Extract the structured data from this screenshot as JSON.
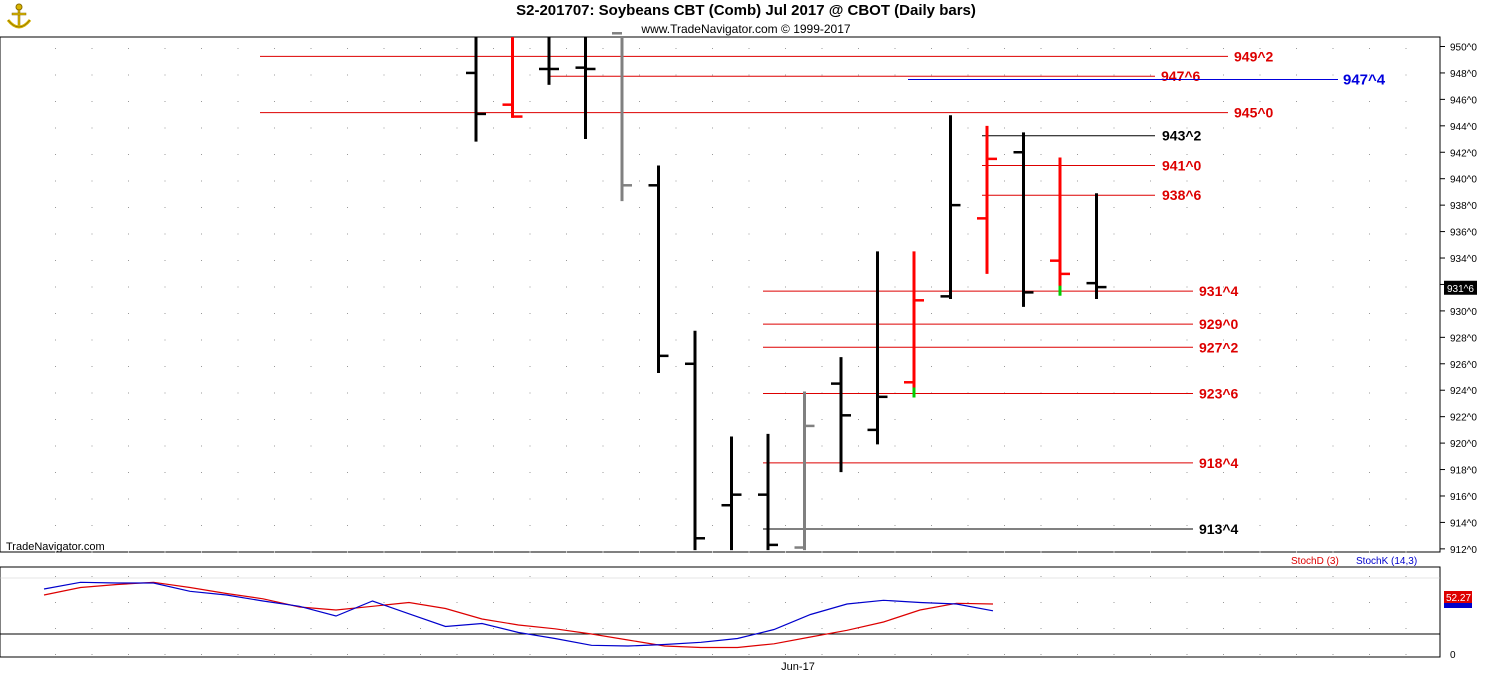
{
  "header": {
    "title": "S2-201707:  Soybeans CBT (Comb) Jul 2017 @ CBOT  (Daily bars)",
    "subtitle": "www.TradeNavigator.com © 1999-2017",
    "watermark": "TradeNavigator.com",
    "logo_icon": "anchor-logo-icon"
  },
  "colors": {
    "up_bar": "#000000",
    "down_bar": "#ff0000",
    "gray_bar": "#808080",
    "level_red": "#dd0000",
    "level_blue": "#0000dd",
    "stoch_d": "#dd0000",
    "stoch_k": "#0000cc"
  },
  "chart_data": [
    {
      "type": "ohlc",
      "title": "S2-201707:  Soybeans CBT (Comb) Jul 2017 @ CBOT  (Daily bars)",
      "ylim": [
        911.5,
        951
      ],
      "y_ticks": [
        {
          "v": 912,
          "label": "912^0"
        },
        {
          "v": 914,
          "label": "914^0"
        },
        {
          "v": 916,
          "label": "916^0"
        },
        {
          "v": 918,
          "label": "918^0"
        },
        {
          "v": 920,
          "label": "920^0"
        },
        {
          "v": 922,
          "label": "922^0"
        },
        {
          "v": 924,
          "label": "924^0"
        },
        {
          "v": 926,
          "label": "926^0"
        },
        {
          "v": 928,
          "label": "928^0"
        },
        {
          "v": 930,
          "label": "930^0"
        },
        {
          "v": 932,
          "label": "932^0"
        },
        {
          "v": 934,
          "label": "934^0"
        },
        {
          "v": 936,
          "label": "936^0"
        },
        {
          "v": 938,
          "label": "938^0"
        },
        {
          "v": 940,
          "label": "940^0"
        },
        {
          "v": 942,
          "label": "942^0"
        },
        {
          "v": 944,
          "label": "944^0"
        },
        {
          "v": 946,
          "label": "946^0"
        },
        {
          "v": 948,
          "label": "948^0"
        },
        {
          "v": 950,
          "label": "950^0"
        }
      ],
      "last_price": {
        "v": 931.75,
        "label": "931^6"
      },
      "x_label": "Jun-17",
      "bars": [
        {
          "o": 948.0,
          "h": 951.0,
          "l": 942.8,
          "c": 944.9,
          "color": "up"
        },
        {
          "o": 945.6,
          "h": 951.0,
          "l": 944.6,
          "c": 944.7,
          "color": "down"
        },
        {
          "o": 948.3,
          "h": 951.0,
          "l": 947.1,
          "c": 948.3,
          "color": "up"
        },
        {
          "o": 948.4,
          "h": 951.0,
          "l": 943.0,
          "c": 948.3,
          "color": "up"
        },
        {
          "o": 951.0,
          "h": 951.0,
          "l": 938.3,
          "c": 939.5,
          "color": "gray"
        },
        {
          "o": 939.5,
          "h": 941.0,
          "l": 925.3,
          "c": 926.6,
          "color": "up"
        },
        {
          "o": 926.0,
          "h": 928.5,
          "l": 911.9,
          "c": 912.8,
          "color": "up"
        },
        {
          "o": 915.3,
          "h": 920.5,
          "l": 911.9,
          "c": 916.1,
          "color": "up"
        },
        {
          "o": 916.1,
          "h": 920.7,
          "l": 911.9,
          "c": 912.3,
          "color": "up"
        },
        {
          "o": 912.1,
          "h": 923.9,
          "l": 911.9,
          "c": 921.3,
          "color": "gray"
        },
        {
          "o": 924.5,
          "h": 926.5,
          "l": 917.8,
          "c": 922.1,
          "color": "up"
        },
        {
          "o": 921.0,
          "h": 934.5,
          "l": 919.9,
          "c": 923.5,
          "color": "up"
        },
        {
          "o": 924.6,
          "h": 934.5,
          "l": 923.5,
          "c": 930.8,
          "color": "down",
          "tick": 923.6
        },
        {
          "o": 931.1,
          "h": 944.8,
          "l": 930.9,
          "c": 938.0,
          "color": "up"
        },
        {
          "o": 937.0,
          "h": 944.0,
          "l": 932.8,
          "c": 941.5,
          "color": "down"
        },
        {
          "o": 942.0,
          "h": 943.5,
          "l": 930.3,
          "c": 931.4,
          "color": "up"
        },
        {
          "o": 933.8,
          "h": 941.6,
          "l": 931.2,
          "c": 932.8,
          "color": "down",
          "tick": 931.3
        },
        {
          "o": 932.1,
          "h": 938.9,
          "l": 930.9,
          "c": 931.8,
          "color": "up"
        }
      ],
      "levels": [
        {
          "v": 949.25,
          "label": "949^2",
          "color": "red"
        },
        {
          "v": 947.75,
          "label": "947^6",
          "color": "red"
        },
        {
          "v": 947.5,
          "label": "947^4",
          "color": "blue"
        },
        {
          "v": 945.0,
          "label": "945^0",
          "color": "red"
        },
        {
          "v": 943.25,
          "label": "943^2",
          "color": "black"
        },
        {
          "v": 941.0,
          "label": "941^0",
          "color": "red"
        },
        {
          "v": 938.75,
          "label": "938^6",
          "color": "red"
        },
        {
          "v": 931.5,
          "label": "931^4",
          "color": "red"
        },
        {
          "v": 929.0,
          "label": "929^0",
          "color": "red"
        },
        {
          "v": 927.25,
          "label": "927^2",
          "color": "red"
        },
        {
          "v": 923.75,
          "label": "923^6",
          "color": "red"
        },
        {
          "v": 918.5,
          "label": "918^4",
          "color": "red"
        },
        {
          "v": 913.5,
          "label": "913^4",
          "color": "black"
        }
      ]
    },
    {
      "type": "line",
      "ylim": [
        0,
        100
      ],
      "y_ticks": [
        {
          "v": 0,
          "label": "0"
        }
      ],
      "last_value_label": "52.27",
      "series": [
        {
          "name": "StochD (3)",
          "color": "red",
          "values": [
            80,
            90,
            94,
            97,
            90,
            82,
            75,
            64,
            60,
            65,
            70,
            62,
            48,
            40,
            35,
            28,
            20,
            12,
            10,
            10,
            15,
            24,
            33,
            44,
            60,
            69,
            68
          ]
        },
        {
          "name": "StochK (14,3)",
          "color": "blue",
          "values": [
            88,
            97,
            96,
            96,
            85,
            80,
            72,
            65,
            52,
            72,
            55,
            38,
            42,
            30,
            22,
            13,
            12,
            14,
            17,
            22,
            34,
            54,
            68,
            73,
            70,
            68,
            59
          ]
        }
      ]
    }
  ]
}
